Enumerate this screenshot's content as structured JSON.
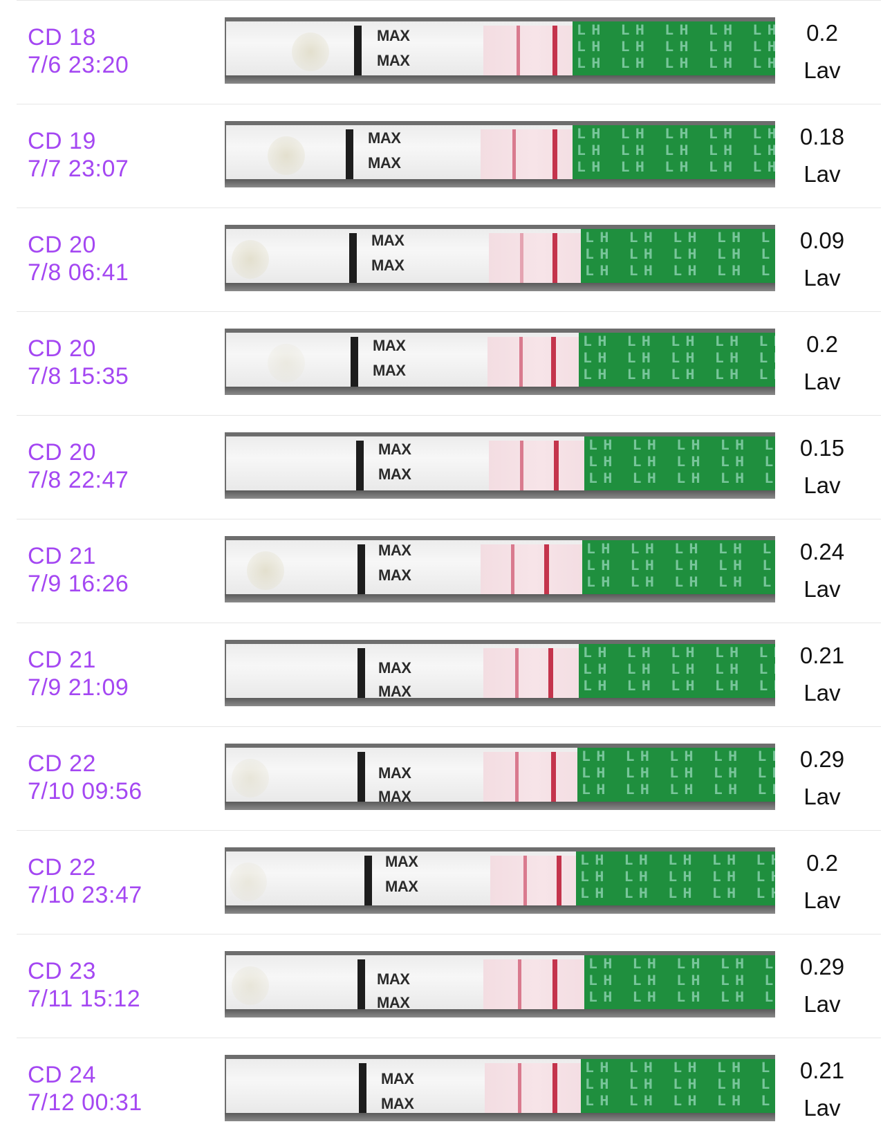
{
  "entries": [
    {
      "cycle_day": "CD 18",
      "datetime": "7/6 23:20",
      "value": "0.2",
      "unit": "Lav",
      "strip_labels": [
        "MAX",
        "MAX"
      ]
    },
    {
      "cycle_day": "CD 19",
      "datetime": "7/7 23:07",
      "value": "0.18",
      "unit": "Lav",
      "strip_labels": [
        "MAX",
        "MAX"
      ]
    },
    {
      "cycle_day": "CD 20",
      "datetime": "7/8 06:41",
      "value": "0.09",
      "unit": "Lav",
      "strip_labels": [
        "MAX",
        "MAX"
      ]
    },
    {
      "cycle_day": "CD 20",
      "datetime": "7/8 15:35",
      "value": "0.2",
      "unit": "Lav",
      "strip_labels": [
        "MAX",
        "MAX"
      ]
    },
    {
      "cycle_day": "CD 20",
      "datetime": "7/8 22:47",
      "value": "0.15",
      "unit": "Lav",
      "strip_labels": [
        "MAX",
        "MAX"
      ]
    },
    {
      "cycle_day": "CD 21",
      "datetime": "7/9 16:26",
      "value": "0.24",
      "unit": "Lav",
      "strip_labels": [
        "MAX",
        "MAX"
      ]
    },
    {
      "cycle_day": "CD 21",
      "datetime": "7/9 21:09",
      "value": "0.21",
      "unit": "Lav",
      "strip_labels": [
        "MAX",
        "MAX"
      ]
    },
    {
      "cycle_day": "CD 22",
      "datetime": "7/10 09:56",
      "value": "0.29",
      "unit": "Lav",
      "strip_labels": [
        "MAX",
        "MAX"
      ]
    },
    {
      "cycle_day": "CD 22",
      "datetime": "7/10 23:47",
      "value": "0.2",
      "unit": "Lav",
      "strip_labels": [
        "MAX",
        "MAX"
      ]
    },
    {
      "cycle_day": "CD 23",
      "datetime": "7/11 15:12",
      "value": "0.29",
      "unit": "Lav",
      "strip_labels": [
        "MAX",
        "MAX"
      ]
    },
    {
      "cycle_day": "CD 24",
      "datetime": "7/12 00:31",
      "value": "0.21",
      "unit": "Lav",
      "strip_labels": [
        "MAX",
        "MAX"
      ]
    }
  ],
  "strip_brand_text": "LH",
  "colors": {
    "accent": "#a447f2",
    "control_line": "#c4344c",
    "test_line": "#d97a8e",
    "green_band": "#1f8f3e"
  }
}
